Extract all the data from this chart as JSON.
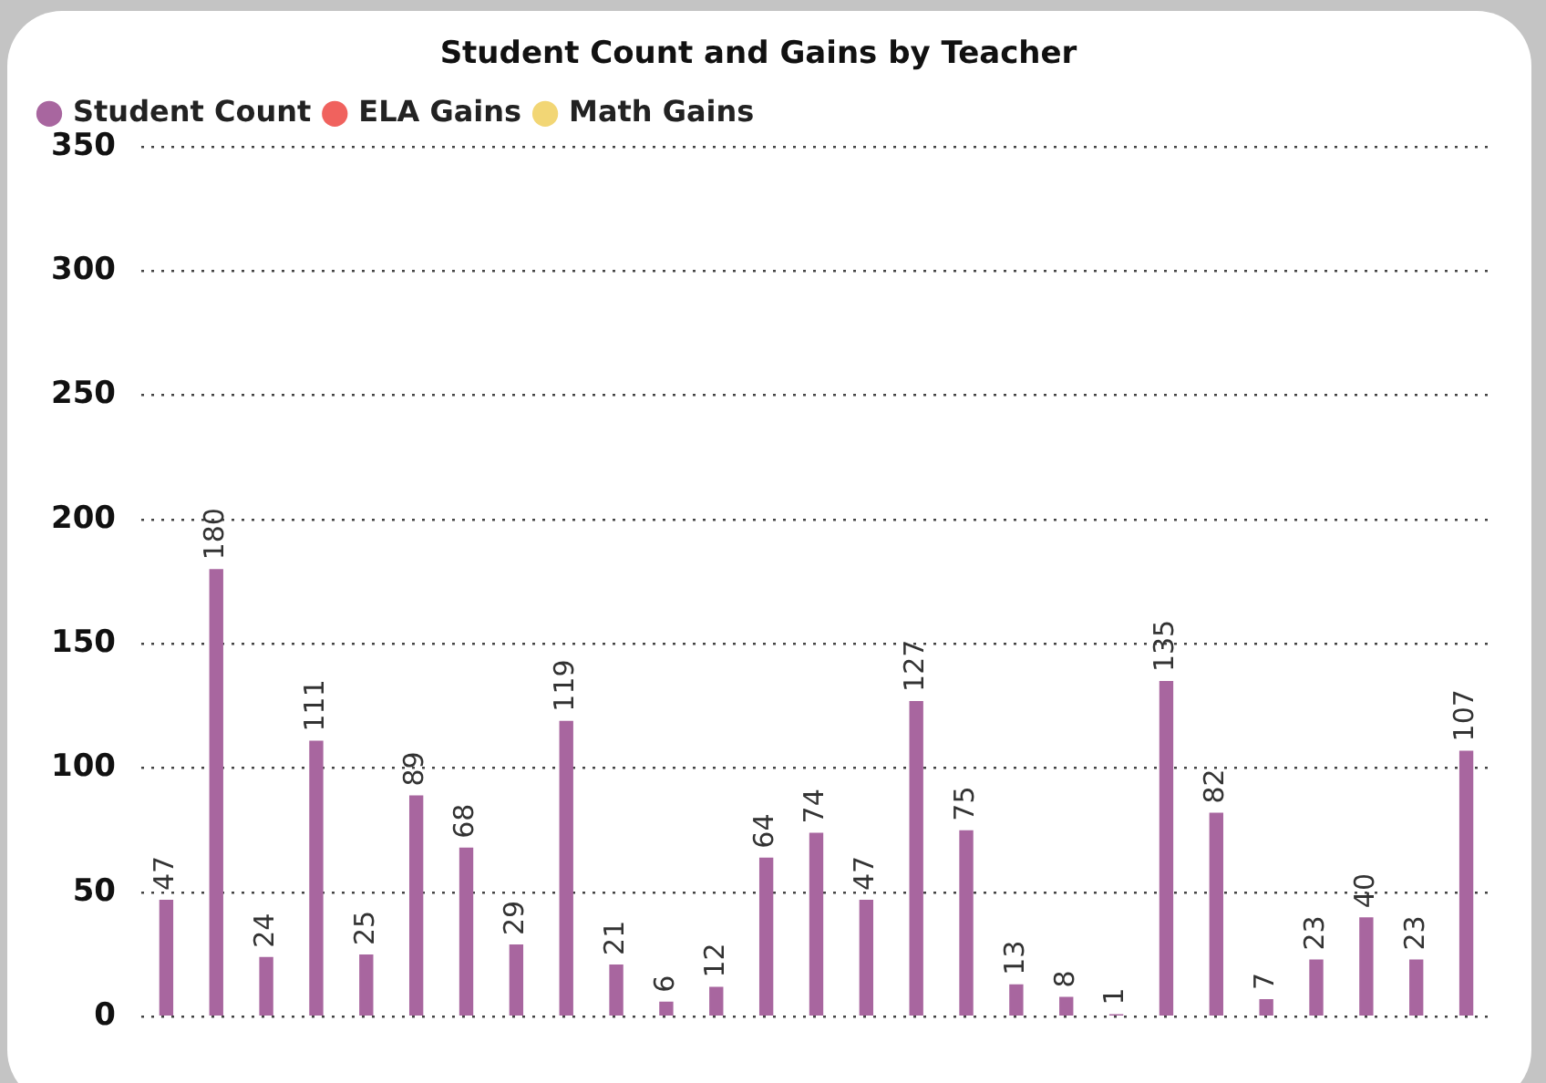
{
  "chart_data": {
    "type": "bar",
    "title": "Student Count and Gains by Teacher",
    "categories": [
      null,
      null,
      null,
      null,
      null,
      null,
      null,
      null,
      null,
      null,
      null,
      null,
      null,
      null,
      null,
      null,
      null,
      null,
      null,
      null,
      null,
      null,
      null,
      null,
      null,
      null,
      null
    ],
    "series": [
      {
        "name": "Student Count",
        "color": "#a8669f",
        "values": [
          47,
          180,
          24,
          111,
          25,
          89,
          68,
          29,
          119,
          21,
          6,
          12,
          64,
          74,
          47,
          127,
          75,
          13,
          8,
          1,
          135,
          82,
          7,
          23,
          40,
          23,
          107
        ]
      },
      {
        "name": "ELA Gains",
        "color": "#f0625e",
        "values": [
          null,
          null,
          null,
          null,
          null,
          null,
          null,
          null,
          null,
          null,
          null,
          null,
          null,
          null,
          null,
          null,
          null,
          null,
          null,
          null,
          null,
          null,
          null,
          null,
          null,
          null,
          null
        ]
      },
      {
        "name": "Math Gains",
        "color": "#f2d675",
        "values": [
          null,
          null,
          null,
          null,
          null,
          null,
          null,
          null,
          null,
          null,
          null,
          null,
          null,
          null,
          null,
          null,
          null,
          null,
          null,
          null,
          null,
          null,
          null,
          null,
          null,
          null,
          null
        ]
      }
    ],
    "ylim": [
      0,
      350
    ],
    "yticks": [
      0,
      50,
      100,
      150,
      200,
      250,
      300,
      350
    ],
    "grid": "y",
    "legend": "top left",
    "data_labels": true,
    "marker": "circle"
  }
}
